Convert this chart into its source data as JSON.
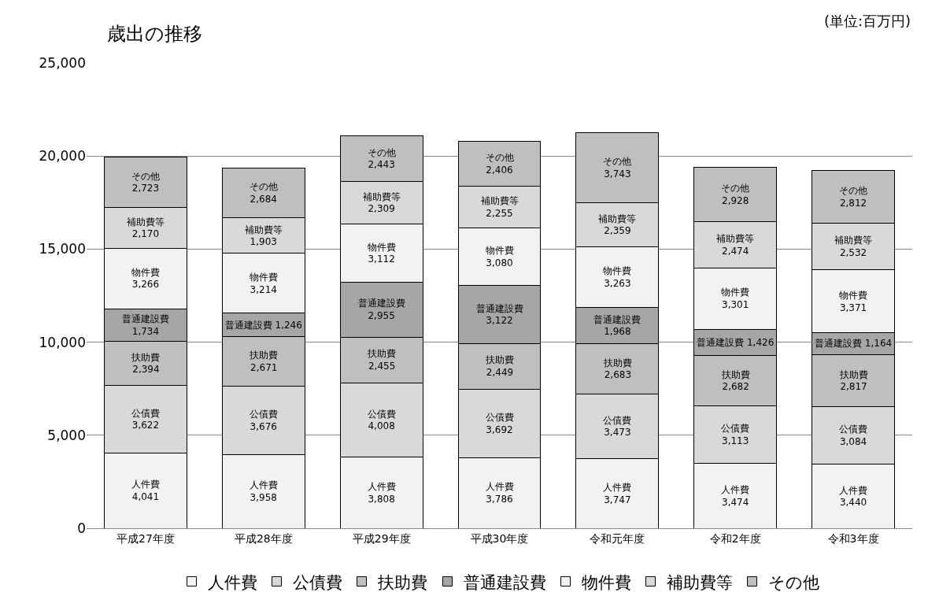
{
  "chart_data": {
    "type": "bar",
    "stacked": true,
    "title": "歳出の推移",
    "annotations": [
      "(単位:百万円)"
    ],
    "categories": [
      "平成27年度",
      "平成28年度",
      "平成29年度",
      "平成30年度",
      "令和元年度",
      "令和2年度",
      "令和3年度"
    ],
    "series": [
      {
        "name": "人件費",
        "color": "#f2f2f2",
        "values": [
          4041,
          3958,
          3808,
          3786,
          3747,
          3474,
          3440
        ],
        "value_labels": [
          "4,041",
          "3,958",
          "3,808",
          "3,786",
          "3,747",
          "3,474",
          "3,440"
        ]
      },
      {
        "name": "公債費",
        "color": "#d9d9d9",
        "values": [
          3622,
          3676,
          4008,
          3692,
          3473,
          3113,
          3084
        ],
        "value_labels": [
          "3,622",
          "3,676",
          "4,008",
          "3,692",
          "3,473",
          "3,113",
          "3,084"
        ]
      },
      {
        "name": "扶助費",
        "color": "#bfbfbf",
        "values": [
          2394,
          2671,
          2455,
          2449,
          2683,
          2682,
          2817
        ],
        "value_labels": [
          "2,394",
          "2,671",
          "2,455",
          "2,449",
          "2,683",
          "2,682",
          "2,817"
        ]
      },
      {
        "name": "普通建設費",
        "color": "#a6a6a6",
        "values": [
          1734,
          1246,
          2955,
          3122,
          1968,
          1426,
          1164
        ],
        "value_labels": [
          "1,734",
          "1,246",
          "2,955",
          "3,122",
          "1,968",
          "1,426",
          "1,164"
        ]
      },
      {
        "name": "物件費",
        "color": "#f2f2f2",
        "values": [
          3266,
          3214,
          3112,
          3080,
          3263,
          3301,
          3371
        ],
        "value_labels": [
          "3,266",
          "3,214",
          "3,112",
          "3,080",
          "3,263",
          "3,301",
          "3,371"
        ]
      },
      {
        "name": "補助費等",
        "color": "#d9d9d9",
        "values": [
          2170,
          1903,
          2309,
          2255,
          2359,
          2474,
          2532
        ],
        "value_labels": [
          "2,170",
          "1,903",
          "2,309",
          "2,255",
          "2,359",
          "2,474",
          "2,532"
        ]
      },
      {
        "name": "その他",
        "color": "#bfbfbf",
        "values": [
          2723,
          2684,
          2443,
          2406,
          3743,
          2928,
          2812
        ],
        "value_labels": [
          "2,723",
          "2,684",
          "2,443",
          "2,406",
          "3,743",
          "2,928",
          "2,812"
        ]
      }
    ],
    "ylim": [
      0,
      25000
    ],
    "yticks": [
      0,
      {
        "value": 5000,
        "label": "5,000"
      },
      {
        "value": 10000,
        "label": "10,000"
      },
      {
        "value": 15000,
        "label": "15,000"
      },
      {
        "value": 20000,
        "label": "20,000"
      },
      {
        "value": 25000,
        "label": "25,000"
      }
    ],
    "grid": "y",
    "legend": "bottom"
  }
}
